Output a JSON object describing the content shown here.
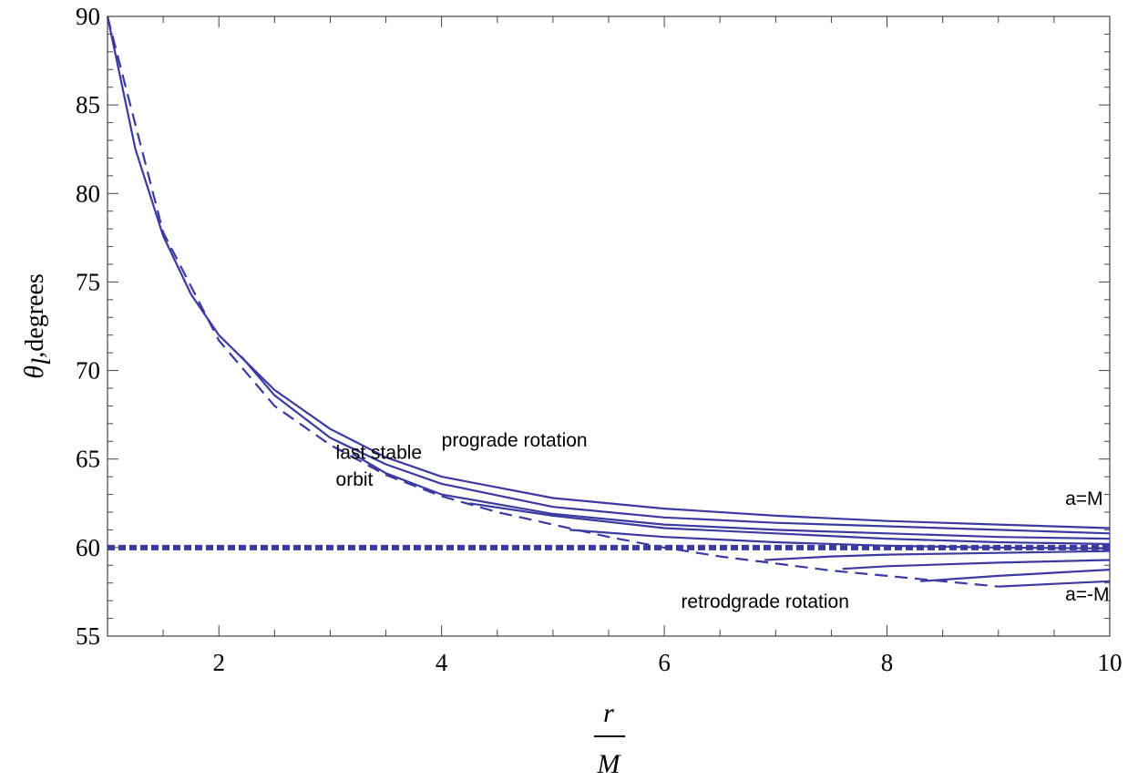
{
  "chart_data": {
    "type": "line",
    "title": "",
    "xlabel": {
      "numerator": "r",
      "denominator": "M"
    },
    "ylabel": {
      "symbol": "θ",
      "subscript": "l",
      "suffix": ",degrees"
    },
    "xlim": [
      1,
      10
    ],
    "ylim": [
      55,
      90
    ],
    "xticks": [
      2,
      4,
      6,
      8,
      10
    ],
    "yticks": [
      55,
      60,
      65,
      70,
      75,
      80,
      85,
      90
    ],
    "grid": false,
    "color": "#3a3aa0",
    "annotations": [
      {
        "text": "prograde rotation",
        "x": 4.0,
        "y": 65.7
      },
      {
        "text": "last stable",
        "x": 3.05,
        "y": 65.0
      },
      {
        "text": "orbit",
        "x": 3.05,
        "y": 63.5
      },
      {
        "text": "a=M",
        "x": 9.6,
        "y": 62.4
      },
      {
        "text": "retrodgrade rotation",
        "x": 6.15,
        "y": 56.6
      },
      {
        "text": "a=-M",
        "x": 9.6,
        "y": 57.0
      }
    ],
    "series": [
      {
        "style": "solid",
        "x": [
          1.0,
          1.25,
          1.5,
          1.75,
          2.0,
          2.5,
          3.0,
          3.5,
          4.0,
          5.0,
          6.0,
          7.0,
          8.0,
          9.0,
          10.0
        ],
        "y": [
          90.0,
          82.5,
          77.6,
          74.3,
          72.0,
          68.9,
          66.7,
          65.1,
          64.0,
          62.8,
          62.2,
          61.8,
          61.5,
          61.3,
          61.1
        ]
      },
      {
        "style": "solid",
        "x": [
          2.2,
          2.5,
          3.0,
          3.5,
          4.0,
          5.0,
          6.0,
          7.0,
          8.0,
          9.0,
          10.0
        ],
        "y": [
          70.8,
          68.6,
          66.2,
          64.7,
          63.6,
          62.3,
          61.7,
          61.4,
          61.2,
          61.0,
          60.8
        ]
      },
      {
        "style": "solid",
        "x": [
          3.2,
          3.5,
          4.0,
          5.0,
          6.0,
          7.0,
          8.0,
          9.0,
          10.0
        ],
        "y": [
          65.3,
          64.2,
          63.0,
          61.9,
          61.3,
          61.0,
          60.8,
          60.6,
          60.5
        ]
      },
      {
        "style": "solid",
        "x": [
          4.25,
          5.0,
          6.0,
          7.0,
          8.0,
          9.0,
          10.0
        ],
        "y": [
          62.5,
          61.8,
          61.1,
          60.8,
          60.5,
          60.3,
          60.2
        ]
      },
      {
        "style": "solid",
        "x": [
          5.15,
          6.0,
          7.0,
          8.0,
          9.0,
          10.0
        ],
        "y": [
          61.0,
          60.6,
          60.3,
          60.1,
          60.0,
          59.95
        ]
      },
      {
        "style": "solid",
        "x": [
          6.9,
          7.5,
          8.0,
          9.0,
          10.0
        ],
        "y": [
          59.3,
          59.5,
          59.6,
          59.7,
          59.8
        ]
      },
      {
        "style": "solid",
        "x": [
          7.6,
          8.0,
          9.0,
          10.0
        ],
        "y": [
          58.8,
          58.95,
          59.15,
          59.3
        ]
      },
      {
        "style": "solid",
        "x": [
          8.3,
          9.0,
          10.0
        ],
        "y": [
          58.1,
          58.4,
          58.75
        ]
      },
      {
        "style": "solid",
        "x": [
          9.0,
          9.5,
          10.0
        ],
        "y": [
          57.8,
          57.95,
          58.1
        ]
      },
      {
        "style": "dashed",
        "x": [
          1.0,
          1.5,
          2.0,
          2.5,
          3.0,
          3.5,
          4.0,
          4.5,
          5.0,
          5.5,
          6.0,
          6.5,
          7.0,
          7.5,
          8.0,
          8.5,
          9.0
        ],
        "y": [
          90.0,
          77.8,
          71.7,
          68.0,
          65.8,
          64.1,
          62.9,
          62.0,
          61.3,
          60.6,
          60.0,
          59.5,
          59.1,
          58.7,
          58.4,
          58.1,
          57.8
        ]
      },
      {
        "style": "dotted",
        "x": [
          1.0,
          10.0
        ],
        "y": [
          60.0,
          60.0
        ]
      }
    ]
  }
}
